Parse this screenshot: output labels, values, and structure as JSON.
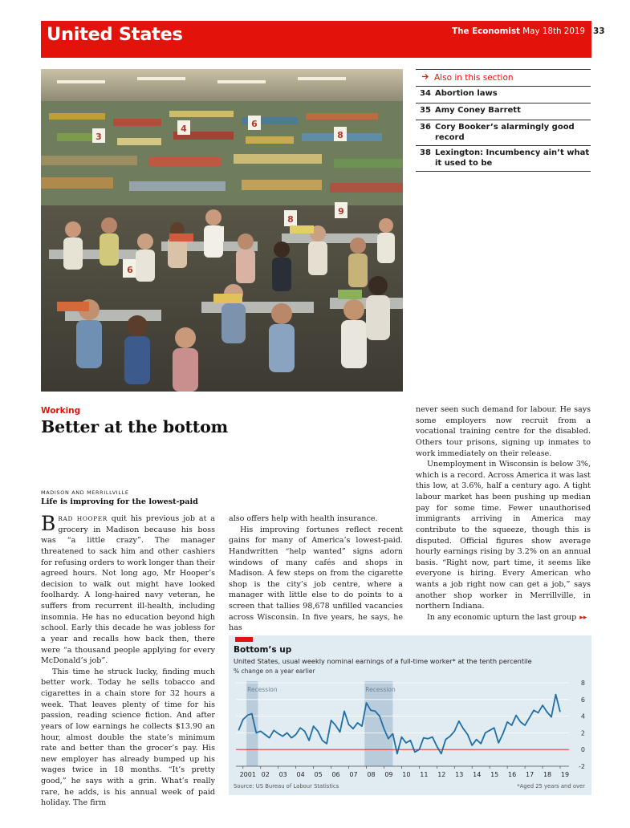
{
  "header": {
    "section": "United States",
    "publication": "The Economist",
    "date": "May 18th 2019",
    "page_number": "33"
  },
  "photo": {
    "subject": "supermarket-checkout-scene"
  },
  "also_in_section": {
    "heading": "Also in this section",
    "items": [
      {
        "page": "34",
        "title": "Abortion laws"
      },
      {
        "page": "35",
        "title": "Amy Coney Barrett"
      },
      {
        "page": "36",
        "title": "Cory Booker’s alarmingly good record"
      },
      {
        "page": "38",
        "title": "Lexington: Incumbency ain’t what it used to be"
      }
    ]
  },
  "article": {
    "kicker": "Working",
    "headline": "Better at the bottom",
    "dateline": "MADISON AND MERRILLVILLE",
    "rubric": "Life is improving for the lowest-paid",
    "col1": {
      "dropcap": "B",
      "lead_smallcaps": "RAD HOOPER",
      "p1_rest": " quit his previous job at a grocery in Madison because his boss was “a little crazy”. The manager threatened to sack him and other cashiers for refusing orders to work longer than their agreed hours. Not long ago, Mr Hooper’s decision to walk out might have looked foolhardy. A long-haired navy veteran, he suffers from recurrent ill-health, including insomnia. He has no education beyond high school. Early this decade he was jobless for a year and recalls how back then, there were “a thousand people applying for every McDonald’s job”.",
      "p2": "This time he struck lucky, finding much better work. Today he sells tobacco and cigarettes in a chain store for 32 hours a week. That leaves plenty of time for his passion, reading science fiction. And after years of low earnings he collects $13.90 an hour, almost double the state’s minimum rate and better than the grocer’s pay. His new employer has already bumped up his wages twice in 18 months. “It’s pretty good,” he says with a grin. What’s really rare, he adds, is his annual week of paid holiday. The firm"
    },
    "col2": {
      "p1": "also offers help with health insurance.",
      "p2": "His improving fortunes reflect recent gains for many of America’s lowest-paid. Handwritten “help wanted” signs adorn windows of many cafés and shops in Madison. A few steps on from the cigarette shop is the city’s job centre, where a manager with little else to do points to a screen that tallies 98,678 unfilled vacancies across Wisconsin. In five years, he says, he has"
    },
    "col3": {
      "p1": "never seen such demand for labour. He says some employers now recruit from a vocational training centre for the disabled. Others tour prisons, signing up inmates to work immediately on their release.",
      "p2": "Unemployment in Wisconsin is below 3%, which is a record. Across America it was last this low, at 3.6%, half a century ago. A tight labour market has been pushing up median pay for some time. Fewer unauthorised immigrants arriving in America may contribute to the squeeze, though this is disputed. Official figures show average hourly earnings rising by 3.2% on an annual basis. “Right now, part time, it seems like everyone is hiring. Every American who wants a job right now can get a job,” says another shop worker in Merrillville, in northern Indiana.",
      "p3": "In any economic upturn the last group",
      "continue_icon": "double-chevron-right-icon"
    }
  },
  "chart_data": {
    "type": "line",
    "title": "Bottom’s up",
    "subtitle": "United States, usual weekly nominal earnings of a full-time worker* at the tenth percentile",
    "ylabel": "% change on a year earlier",
    "ylim": [
      -2,
      8
    ],
    "yticks": [
      "8",
      "6",
      "4",
      "2",
      "0",
      "-2"
    ],
    "y_tick_values": [
      8,
      6,
      4,
      2,
      0,
      -2
    ],
    "xlim": [
      2000.6,
      2019.5
    ],
    "x_tick_labels": [
      "2001",
      "02",
      "03",
      "04",
      "05",
      "06",
      "07",
      "08",
      "09",
      "10",
      "11",
      "12",
      "13",
      "14",
      "15",
      "16",
      "17",
      "18",
      "19"
    ],
    "x_tick_values": [
      2001,
      2002,
      2003,
      2004,
      2005,
      2006,
      2007,
      2008,
      2009,
      2010,
      2011,
      2012,
      2013,
      2014,
      2015,
      2016,
      2017,
      2018,
      2019
    ],
    "recessions": [
      {
        "label": "Recession",
        "start": 2001.2,
        "end": 2001.85
      },
      {
        "label": "Recession",
        "start": 2007.9,
        "end": 2009.5
      }
    ],
    "series": [
      {
        "color": "#1f6fa5",
        "x": [
          2000.75,
          2001.0,
          2001.25,
          2001.5,
          2001.75,
          2002.0,
          2002.25,
          2002.5,
          2002.75,
          2003.0,
          2003.25,
          2003.5,
          2003.75,
          2004.0,
          2004.25,
          2004.5,
          2004.75,
          2005.0,
          2005.25,
          2005.5,
          2005.75,
          2006.0,
          2006.25,
          2006.5,
          2006.75,
          2007.0,
          2007.25,
          2007.5,
          2007.75,
          2008.0,
          2008.25,
          2008.5,
          2008.75,
          2009.0,
          2009.25,
          2009.5,
          2009.75,
          2010.0,
          2010.25,
          2010.5,
          2010.75,
          2011.0,
          2011.25,
          2011.5,
          2011.75,
          2012.0,
          2012.25,
          2012.5,
          2012.75,
          2013.0,
          2013.25,
          2013.5,
          2013.75,
          2014.0,
          2014.25,
          2014.5,
          2014.75,
          2015.0,
          2015.25,
          2015.5,
          2015.75,
          2016.0,
          2016.25,
          2016.5,
          2016.75,
          2017.0,
          2017.25,
          2017.5,
          2017.75,
          2018.0,
          2018.25,
          2018.5,
          2018.75,
          2019.0
        ],
        "values": [
          2.3,
          3.6,
          4.1,
          4.3,
          2.0,
          2.2,
          1.8,
          1.4,
          2.3,
          1.9,
          1.6,
          2.0,
          1.4,
          1.8,
          2.6,
          2.2,
          1.1,
          2.8,
          2.2,
          1.1,
          0.7,
          3.5,
          2.9,
          2.1,
          4.6,
          3.0,
          2.5,
          3.2,
          2.8,
          5.6,
          4.7,
          4.6,
          4.0,
          2.5,
          1.3,
          1.9,
          -0.5,
          1.5,
          0.8,
          1.1,
          -0.3,
          0.0,
          1.4,
          1.3,
          1.5,
          0.4,
          -0.5,
          1.2,
          1.6,
          2.2,
          3.4,
          2.5,
          1.8,
          0.5,
          1.2,
          0.7,
          2.0,
          2.3,
          2.6,
          0.8,
          1.9,
          3.3,
          2.9,
          4.1,
          3.3,
          2.9,
          3.8,
          4.7,
          4.4,
          5.3,
          4.5,
          3.9,
          6.6,
          4.5
        ]
      }
    ],
    "source": "Source: US Bureau of Labour Statistics",
    "note": "*Aged 25 years and over"
  }
}
